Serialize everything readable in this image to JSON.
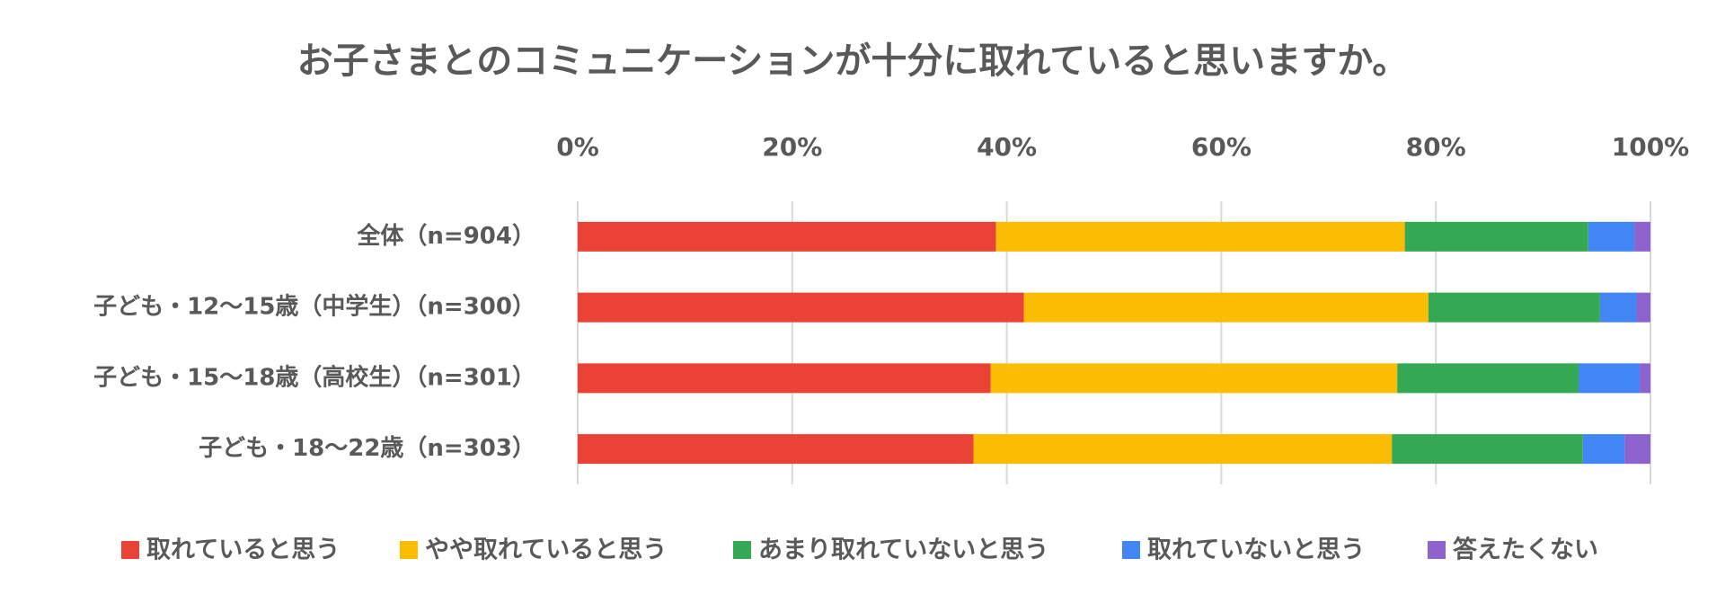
{
  "chart_data": {
    "type": "stacked-bar-horizontal",
    "title": "お子さまとのコミュニケーションが十分に取れていると思いますか。",
    "categories": [
      "全体（n=904）",
      "子ども・12〜15歳（中学生）（n=300）",
      "子ども・15〜18歳（高校生）（n=301）",
      "子ども・18〜22歳（n=303）"
    ],
    "series": [
      {
        "name": "取れていると思う",
        "color": "#ea4335",
        "values": [
          39.0,
          41.6,
          38.5,
          36.9
        ]
      },
      {
        "name": "やや取れていると思う",
        "color": "#fbbc04",
        "values": [
          38.1,
          37.7,
          37.9,
          39.0
        ]
      },
      {
        "name": "あまり取れていないと思う",
        "color": "#34a853",
        "values": [
          17.1,
          16.0,
          16.9,
          17.8
        ]
      },
      {
        "name": "取れていないと思う",
        "color": "#4285f4",
        "values": [
          4.3,
          3.4,
          5.7,
          3.9
        ]
      },
      {
        "name": "答えたくない",
        "color": "#8e63ce",
        "values": [
          1.5,
          1.3,
          1.0,
          2.4
        ]
      }
    ],
    "xlim": [
      0,
      100
    ],
    "xticks": [
      {
        "value": 0,
        "label": "0%"
      },
      {
        "value": 20,
        "label": "20%"
      },
      {
        "value": 40,
        "label": "40%"
      },
      {
        "value": 60,
        "label": "60%"
      },
      {
        "value": 80,
        "label": "80%"
      },
      {
        "value": 100,
        "label": "100%"
      }
    ],
    "grid": true,
    "legend": "bottom"
  }
}
